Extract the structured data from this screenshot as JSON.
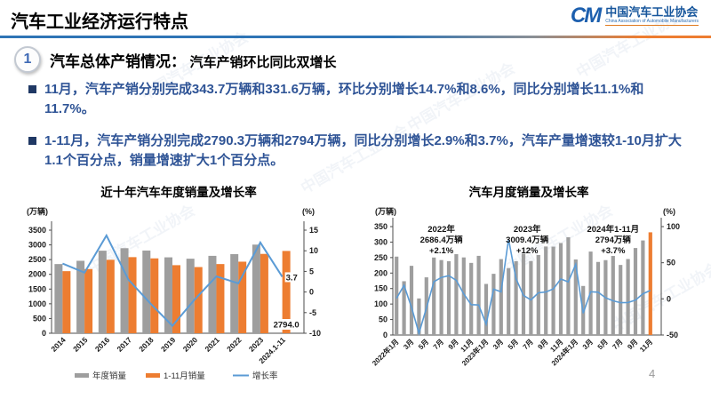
{
  "header": {
    "title": "汽车工业经济运行特点",
    "logo": {
      "mark": "CM",
      "name": "中国汽车工业协会",
      "subtitle": "China Association of Automobile Manufacturers"
    }
  },
  "section": {
    "badge": "1",
    "title": "汽车总体产销情况：",
    "subtitle": "汽车产销环比同比双增长"
  },
  "bullets": [
    "11月，汽车产销分别完成343.7万辆和331.6万辆，环比分别增长14.7%和8.6%，同比分别增长11.1%和11.7%。",
    "1-11月，汽车产销分别完成2790.3万辆和2794万辆，同比分别增长2.9%和3.7%，汽车产量增速较1-10月扩大1.1个百分点，销量增速扩大1个百分点。"
  ],
  "watermark": {
    "text": "中国汽车工业协会"
  },
  "page": {
    "number": "4"
  },
  "colors": {
    "bar_gray": "#9e9e9e",
    "bar_orange": "#ed7d31",
    "line_blue": "#5b9bd5",
    "text_blue": "#2f5496",
    "divider_blue": "#2e74b5"
  },
  "chart_data": [
    {
      "type": "bar+line",
      "title": "近十年汽车年度销量及增长率",
      "left_axis_label": "(万辆)",
      "right_axis_label": "(%)",
      "left_axis": {
        "min": 0,
        "max": 3500,
        "step": 500
      },
      "right_axis": {
        "min": -10,
        "max": 15,
        "step": 5
      },
      "categories": [
        "2014",
        "2015",
        "2016",
        "2017",
        "2018",
        "2019",
        "2020",
        "2021",
        "2022",
        "2023",
        "2024.1-11"
      ],
      "series": [
        {
          "name": "年度销量",
          "type": "bar",
          "color": "#9e9e9e",
          "values": [
            2349,
            2460,
            2803,
            2888,
            2808,
            2577,
            2531,
            2628,
            2686,
            3009,
            null
          ]
        },
        {
          "name": "1-11月销量",
          "type": "bar",
          "color": "#ed7d31",
          "values": [
            2108,
            2179,
            2494,
            2584,
            2542,
            2311,
            2247,
            2349,
            2430,
            2694,
            2794
          ]
        },
        {
          "name": "增长率",
          "type": "line",
          "axis": "right",
          "color": "#5b9bd5",
          "values": [
            6.9,
            4.7,
            13.7,
            3.0,
            -2.8,
            -8.2,
            -1.9,
            3.8,
            2.1,
            12.0,
            3.7
          ]
        }
      ],
      "annotations": [
        {
          "text": "3.7",
          "position": "line-end"
        },
        {
          "text": "2794.0",
          "position": "last-bar-base"
        }
      ],
      "legend": [
        "年度销量",
        "1-11月销量",
        "增长率"
      ],
      "grid": false,
      "legend_position": "bottom"
    },
    {
      "type": "bar+line",
      "title": "汽车月度销量及增长率",
      "left_axis_label": "(万辆)",
      "right_axis_label": "(%)",
      "left_axis": {
        "min": 0,
        "max": 350,
        "step": 50
      },
      "right_axis": {
        "min": -50,
        "max": 100,
        "step": 50
      },
      "tick_every": 2,
      "categories": [
        "2022年1月",
        "2月",
        "3月",
        "4月",
        "5月",
        "6月",
        "7月",
        "8月",
        "9月",
        "10月",
        "11月",
        "12月",
        "2023年1月",
        "2月",
        "3月",
        "4月",
        "5月",
        "6月",
        "7月",
        "8月",
        "9月",
        "10月",
        "11月",
        "12月",
        "2024年1月",
        "2月",
        "3月",
        "4月",
        "5月",
        "6月",
        "7月",
        "8月",
        "9月",
        "10月",
        "11月"
      ],
      "series": [
        {
          "name": "月度销量",
          "type": "bar",
          "color": "#9e9e9e",
          "highlight_last_color": "#ed7d31",
          "values": [
            253.1,
            173.7,
            223.4,
            118.1,
            186.2,
            250.2,
            242.0,
            238.3,
            261.0,
            250.5,
            232.8,
            255.6,
            164.9,
            197.6,
            245.1,
            215.9,
            238.2,
            262.2,
            238.8,
            258.2,
            285.8,
            285.3,
            297.0,
            315.6,
            243.9,
            158.4,
            269.4,
            235.9,
            241.7,
            255.2,
            226.2,
            245.3,
            280.9,
            305.3,
            331.6
          ]
        },
        {
          "name": "增长率",
          "type": "line",
          "axis": "right",
          "color": "#5b9bd5",
          "values": [
            0.9,
            18.7,
            -11.7,
            -47.6,
            -12.6,
            23.8,
            29.7,
            32.1,
            25.7,
            6.9,
            -7.9,
            -8.4,
            -35.0,
            13.5,
            9.7,
            82.7,
            27.9,
            4.8,
            -1.4,
            8.4,
            9.5,
            13.8,
            27.4,
            23.5,
            47.9,
            -19.9,
            9.9,
            9.3,
            1.5,
            -2.7,
            -5.2,
            -5.0,
            -1.7,
            7.0,
            11.7
          ]
        }
      ],
      "annotations": [
        {
          "anchor_index": 6.0,
          "lines": [
            "2022年",
            "2686.4万辆",
            "+2.1%"
          ]
        },
        {
          "anchor_index": 17.5,
          "lines": [
            "2023年",
            "3009.4万辆",
            "+12%"
          ]
        },
        {
          "anchor_index": 29.0,
          "lines": [
            "2024年1-11月",
            "2794万辆",
            "+3.7%"
          ]
        }
      ],
      "grid": false,
      "legend_position": "none"
    }
  ]
}
